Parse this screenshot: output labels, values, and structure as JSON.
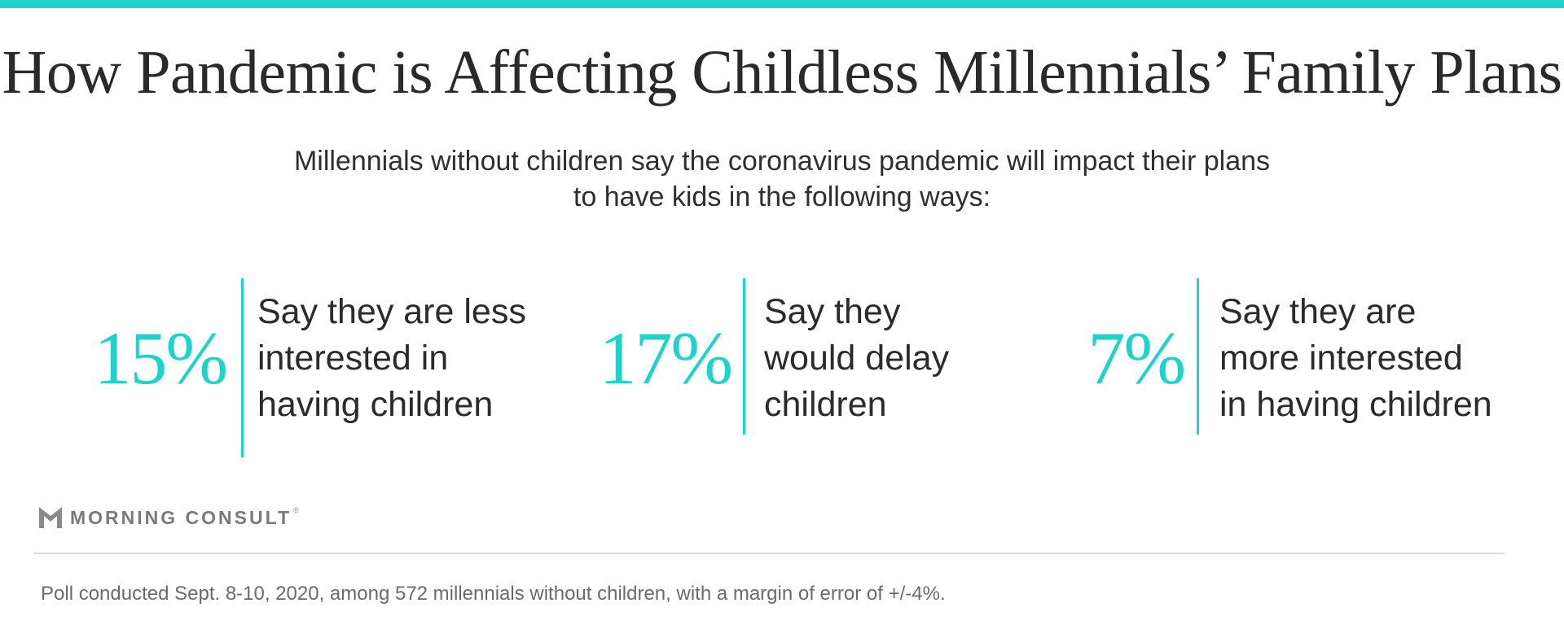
{
  "accent_color": "#1fd3cb",
  "title": "How Pandemic is Affecting Childless Millennials’ Family Plans",
  "subtitle": "Millennials without children say the coronavirus pandemic will impact their plans to have kids in the following ways:",
  "chart_data": {
    "type": "table",
    "title": "How Pandemic is Affecting Childless Millennials’ Family Plans",
    "subtitle": "Millennials without children say the coronavirus pandemic will impact their plans to have kids in the following ways:",
    "items": [
      {
        "value": 15,
        "display": "15%",
        "label": "Say they are less\ninterested in\nhaving children"
      },
      {
        "value": 17,
        "display": "17%",
        "label": "Say they\nwould delay\nchildren"
      },
      {
        "value": 7,
        "display": "7%",
        "label": "Say they are\nmore interested\nin having children"
      }
    ]
  },
  "brand": {
    "name": "MORNING CONSULT",
    "registered_mark": "®",
    "icon": "morning-consult-logo-icon"
  },
  "footnote": "Poll conducted Sept. 8-10, 2020, among 572 millennials without children, with a margin of error of +/-4%."
}
